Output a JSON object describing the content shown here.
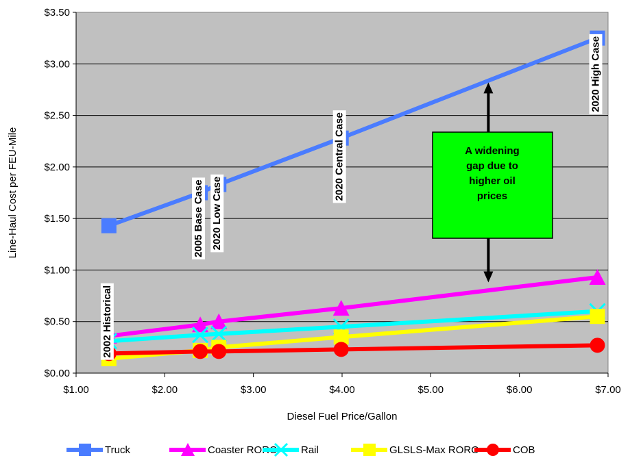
{
  "chart_data": {
    "type": "line",
    "xlabel": "Diesel Fuel Price/Gallon",
    "ylabel": "Line-Haul Cost per FEU-Mile",
    "xlim": [
      1.0,
      7.0
    ],
    "ylim": [
      0.0,
      3.5
    ],
    "x_ticks": [
      "$1.00",
      "$2.00",
      "$3.00",
      "$4.00",
      "$5.00",
      "$6.00",
      "$7.00"
    ],
    "y_ticks": [
      "$0.00",
      "$0.50",
      "$1.00",
      "$1.50",
      "$2.00",
      "$2.50",
      "$3.00",
      "$3.50"
    ],
    "grid": true,
    "legend_position": "bottom",
    "plot_background": "#c0c0c0",
    "series": [
      {
        "name": "Truck",
        "color": "#4a7cff",
        "marker": "square",
        "x": [
          1.37,
          2.4,
          2.61,
          3.99,
          6.88
        ],
        "y": [
          1.43,
          1.75,
          1.83,
          2.28,
          3.25
        ]
      },
      {
        "name": "Coaster RORO",
        "color": "#ff00ff",
        "marker": "triangle",
        "x": [
          1.37,
          2.4,
          2.61,
          3.99,
          6.88
        ],
        "y": [
          0.36,
          0.47,
          0.5,
          0.63,
          0.93
        ]
      },
      {
        "name": "Rail",
        "color": "#00ffff",
        "marker": "x",
        "x": [
          1.37,
          2.4,
          2.61,
          3.99,
          6.88
        ],
        "y": [
          0.31,
          0.37,
          0.38,
          0.45,
          0.6
        ]
      },
      {
        "name": "GLSLS-Max RORO",
        "color": "#ffff00",
        "marker": "square",
        "x": [
          1.37,
          2.4,
          2.61,
          3.99,
          6.88
        ],
        "y": [
          0.14,
          0.22,
          0.25,
          0.35,
          0.55
        ]
      },
      {
        "name": "COB",
        "color": "#ff0000",
        "marker": "circle",
        "x": [
          1.37,
          2.4,
          2.61,
          3.99,
          6.88
        ],
        "y": [
          0.19,
          0.21,
          0.21,
          0.23,
          0.27
        ]
      }
    ],
    "annotations": {
      "cases": [
        {
          "text": "2002 Historical",
          "x": 1.37,
          "y": 0.5
        },
        {
          "text": "2005 Base Case",
          "x": 2.4,
          "y": 1.5
        },
        {
          "text": "2020 Low Case",
          "x": 2.61,
          "y": 1.55
        },
        {
          "text": "2020 Central Case",
          "x": 3.99,
          "y": 2.1
        },
        {
          "text": "2020 High Case",
          "x": 6.88,
          "y": 2.9
        }
      ],
      "callout": {
        "lines": [
          "A widening",
          "gap due to",
          "higher oil",
          "prices"
        ],
        "color": "#00ff00",
        "arrow_x": 5.65,
        "arrow_up_to_y": 2.82,
        "arrow_down_to_y": 0.88
      }
    }
  }
}
